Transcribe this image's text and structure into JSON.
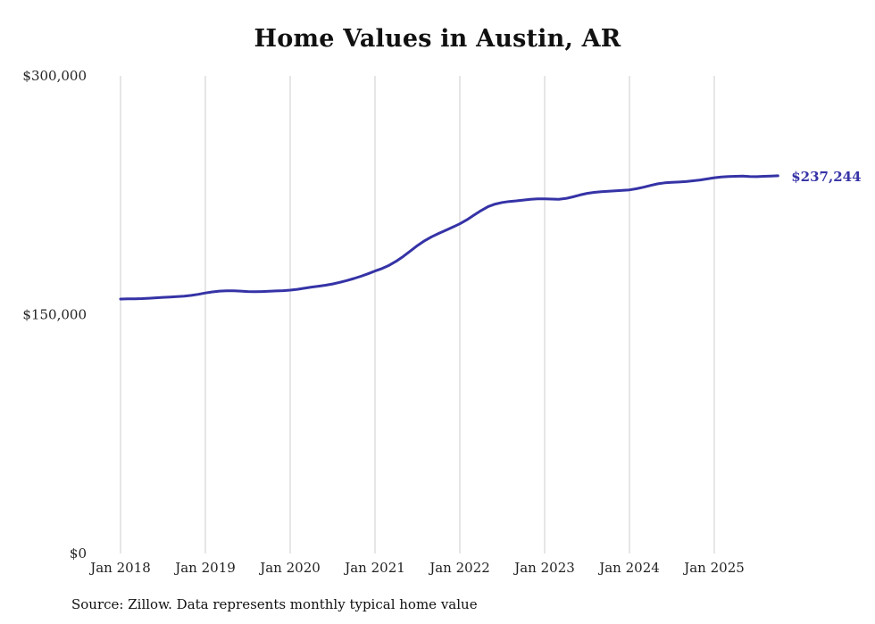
{
  "chart_data": {
    "type": "line",
    "title": "Home Values in Austin, AR",
    "source_note": "Source: Zillow. Data represents monthly typical home value",
    "end_label": "$237,244",
    "line_color": "#3533a6",
    "grid_color": "#cccccc",
    "text_color": "#222222",
    "ylim": [
      0,
      300000
    ],
    "grid": "vertical-only",
    "legend": "none",
    "y_ticks": [
      {
        "value": 0,
        "label": "$0"
      },
      {
        "value": 150000,
        "label": "$150,000"
      },
      {
        "value": 300000,
        "label": "$300,000"
      }
    ],
    "x_tick_labels": [
      "Jan 2018",
      "Jan 2019",
      "Jan 2020",
      "Jan 2021",
      "Jan 2022",
      "Jan 2023",
      "Jan 2024",
      "Jan 2025"
    ],
    "frequency": "monthly",
    "x_start_month": "2018-01",
    "x_end_month": "2025-10",
    "series": [
      {
        "name": "Typical home value",
        "values": [
          159800,
          159900,
          160000,
          160100,
          160300,
          160600,
          160900,
          161100,
          161300,
          161600,
          162100,
          162800,
          163600,
          164300,
          164800,
          165000,
          165000,
          164800,
          164500,
          164400,
          164500,
          164700,
          164900,
          165100,
          165400,
          165900,
          166600,
          167300,
          167900,
          168500,
          169300,
          170300,
          171400,
          172700,
          174100,
          175700,
          177400,
          179000,
          181000,
          183600,
          186600,
          190000,
          193400,
          196400,
          198900,
          201000,
          203000,
          205000,
          207100,
          209600,
          212500,
          215400,
          217900,
          219500,
          220500,
          221100,
          221500,
          222000,
          222500,
          222800,
          222800,
          222600,
          222500,
          223000,
          224000,
          225200,
          226200,
          226800,
          227200,
          227500,
          227800,
          228100,
          228400,
          229100,
          230100,
          231200,
          232200,
          232800,
          233100,
          233300,
          233600,
          234100,
          234600,
          235300,
          236000,
          236500,
          236800,
          236900,
          237000,
          236800,
          236700,
          236900,
          237100,
          237244
        ]
      }
    ]
  }
}
